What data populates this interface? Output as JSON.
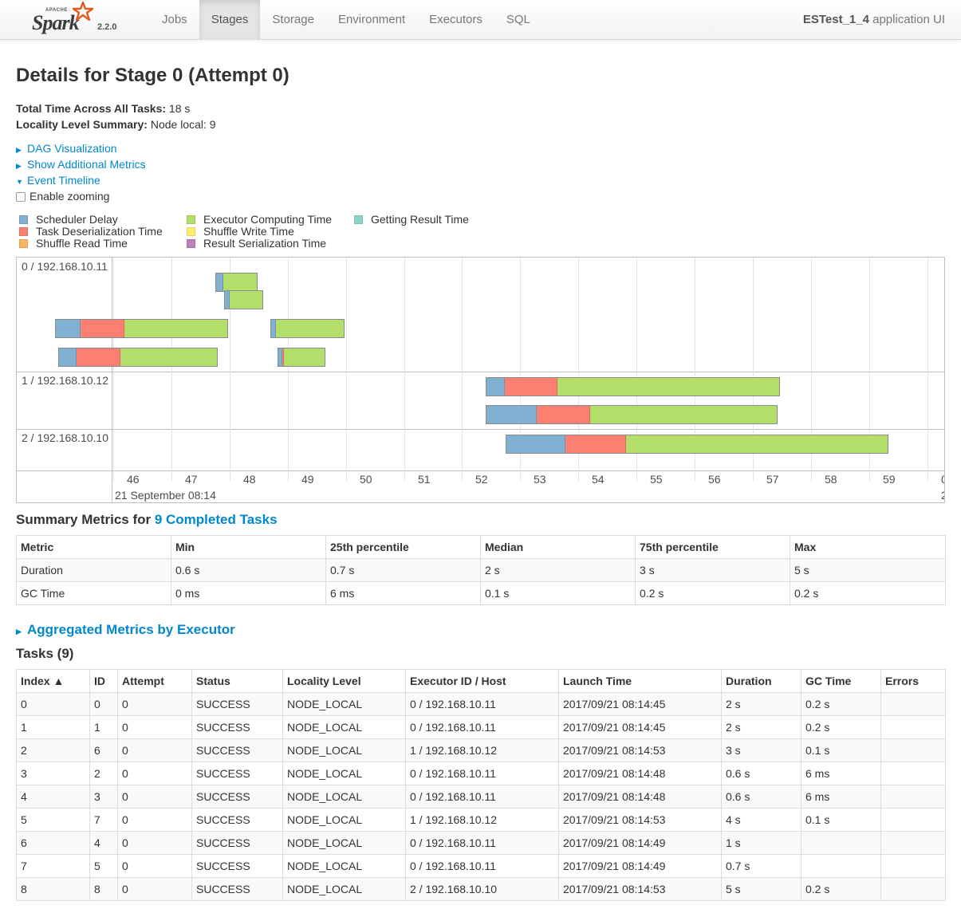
{
  "navbar": {
    "brand_apache": "APACHE",
    "brand_name": "Spark",
    "version": "2.2.0",
    "tabs": [
      {
        "label": "Jobs",
        "active": false
      },
      {
        "label": "Stages",
        "active": true
      },
      {
        "label": "Storage",
        "active": false
      },
      {
        "label": "Environment",
        "active": false
      },
      {
        "label": "Executors",
        "active": false
      },
      {
        "label": "SQL",
        "active": false
      }
    ],
    "app_name": "ESTest_1_4",
    "app_suffix": " application UI"
  },
  "page": {
    "title": "Details for Stage 0 (Attempt 0)",
    "total_time_label": "Total Time Across All Tasks:",
    "total_time_value": " 18 s",
    "locality_label": "Locality Level Summary:",
    "locality_value": " Node local: 9"
  },
  "toggles": {
    "dag": "DAG Visualization",
    "metrics": "Show Additional Metrics",
    "timeline": "Event Timeline",
    "zoom": "Enable zooming"
  },
  "legend": [
    {
      "label": "Scheduler Delay",
      "color": "#80b1d3"
    },
    {
      "label": "Task Deserialization Time",
      "color": "#fb8072"
    },
    {
      "label": "Shuffle Read Time",
      "color": "#fdb462"
    },
    {
      "label": "Executor Computing Time",
      "color": "#b3de69"
    },
    {
      "label": "Shuffle Write Time",
      "color": "#ffed6f"
    },
    {
      "label": "Result Serialization Time",
      "color": "#bc80bd"
    },
    {
      "label": "Getting Result Time",
      "color": "#8dd3c7"
    }
  ],
  "timeline": {
    "groups": [
      "0 / 192.168.10.11",
      "1 / 192.168.10.12",
      "2 / 192.168.10.10"
    ],
    "axis_labels": [
      "46",
      "47",
      "48",
      "49",
      "50",
      "51",
      "52",
      "53",
      "54",
      "55",
      "56",
      "57",
      "58",
      "59",
      "0"
    ],
    "axis_tail": "2",
    "date_label": "21 September 08:14"
  },
  "summary": {
    "heading_prefix": "Summary Metrics for ",
    "heading_link": "9 Completed Tasks",
    "columns": [
      "Metric",
      "Min",
      "25th percentile",
      "Median",
      "75th percentile",
      "Max"
    ],
    "rows": [
      [
        "Duration",
        "0.6 s",
        "0.7 s",
        "2 s",
        "3 s",
        "5 s"
      ],
      [
        "GC Time",
        "0 ms",
        "6 ms",
        "0.1 s",
        "0.2 s",
        "0.2 s"
      ]
    ]
  },
  "aggregated": "Aggregated Metrics by Executor",
  "tasks": {
    "heading": "Tasks (9)",
    "columns": [
      "Index ▲",
      "ID",
      "Attempt",
      "Status",
      "Locality Level",
      "Executor ID / Host",
      "Launch Time",
      "Duration",
      "GC Time",
      "Errors"
    ],
    "rows": [
      [
        "0",
        "0",
        "0",
        "SUCCESS",
        "NODE_LOCAL",
        "0 / 192.168.10.11",
        "2017/09/21 08:14:45",
        "2 s",
        "0.2 s",
        ""
      ],
      [
        "1",
        "1",
        "0",
        "SUCCESS",
        "NODE_LOCAL",
        "0 / 192.168.10.11",
        "2017/09/21 08:14:45",
        "2 s",
        "0.2 s",
        ""
      ],
      [
        "2",
        "6",
        "0",
        "SUCCESS",
        "NODE_LOCAL",
        "1 / 192.168.10.12",
        "2017/09/21 08:14:53",
        "3 s",
        "0.1 s",
        ""
      ],
      [
        "3",
        "2",
        "0",
        "SUCCESS",
        "NODE_LOCAL",
        "0 / 192.168.10.11",
        "2017/09/21 08:14:48",
        "0.6 s",
        "6 ms",
        ""
      ],
      [
        "4",
        "3",
        "0",
        "SUCCESS",
        "NODE_LOCAL",
        "0 / 192.168.10.11",
        "2017/09/21 08:14:48",
        "0.6 s",
        "6 ms",
        ""
      ],
      [
        "5",
        "7",
        "0",
        "SUCCESS",
        "NODE_LOCAL",
        "1 / 192.168.10.12",
        "2017/09/21 08:14:53",
        "4 s",
        "0.1 s",
        ""
      ],
      [
        "6",
        "4",
        "0",
        "SUCCESS",
        "NODE_LOCAL",
        "0 / 192.168.10.11",
        "2017/09/21 08:14:49",
        "1 s",
        "",
        ""
      ],
      [
        "7",
        "5",
        "0",
        "SUCCESS",
        "NODE_LOCAL",
        "0 / 192.168.10.11",
        "2017/09/21 08:14:49",
        "0.7 s",
        "",
        ""
      ],
      [
        "8",
        "8",
        "0",
        "SUCCESS",
        "NODE_LOCAL",
        "2 / 192.168.10.10",
        "2017/09/21 08:14:53",
        "5 s",
        "0.2 s",
        ""
      ]
    ]
  }
}
